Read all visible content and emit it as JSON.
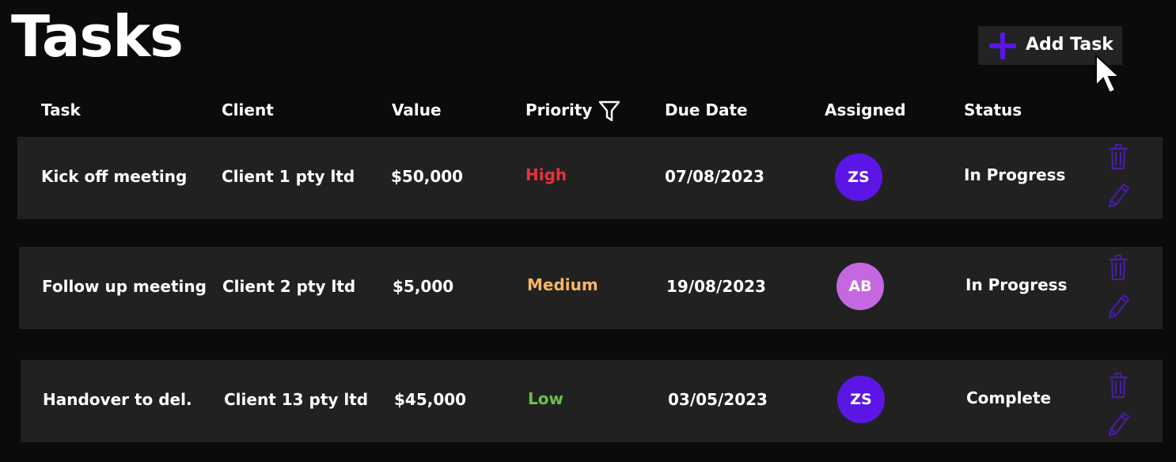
{
  "page": {
    "title": "Tasks"
  },
  "toolbar": {
    "add_task_label": "Add Task"
  },
  "table": {
    "headers": {
      "task": "Task",
      "client": "Client",
      "value": "Value",
      "priority": "Priority",
      "due_date": "Due Date",
      "assigned": "Assigned",
      "status": "Status"
    },
    "rows": [
      {
        "task": "Kick off meeting",
        "client": "Client 1 pty ltd",
        "value": "$50,000",
        "priority": "High",
        "due_date": "07/08/2023",
        "assigned": "ZS",
        "status": "In Progress"
      },
      {
        "task": "Follow up meeting",
        "client": "Client 2 pty ltd",
        "value": "$5,000",
        "priority": "Medium",
        "due_date": "19/08/2023",
        "assigned": "AB",
        "status": "In Progress"
      },
      {
        "task": "Handover to del.",
        "client": "Client 13 pty ltd",
        "value": "$45,000",
        "priority": "Low",
        "due_date": "03/05/2023",
        "assigned": "ZS",
        "status": "Complete"
      }
    ]
  },
  "colors": {
    "background": "#0c0b0c",
    "row_background": "#222122",
    "accent": "#5b16e6",
    "priority_high": "#e8323a",
    "priority_medium": "#f5b764",
    "priority_low": "#6cc04a",
    "avatar_zs": "#5b16e6",
    "avatar_ab": "#c568e0"
  },
  "icons": {
    "add": "plus-icon",
    "filter": "filter-icon",
    "delete": "trash-icon",
    "edit": "pencil-icon",
    "cursor": "cursor-icon"
  }
}
